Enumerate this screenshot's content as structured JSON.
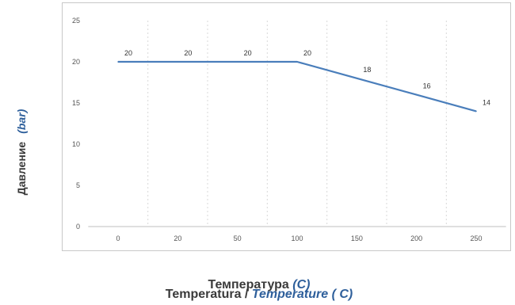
{
  "chart_data": {
    "type": "line",
    "categories": [
      "0",
      "20",
      "50",
      "100",
      "150",
      "200",
      "250"
    ],
    "series": [
      {
        "values": [
          20,
          20,
          20,
          20,
          18,
          16,
          14
        ],
        "color": "#4a7ebb"
      }
    ],
    "data_labels": [
      "20",
      "20",
      "20",
      "20",
      "18",
      "16",
      "14"
    ],
    "ylim": [
      0,
      25
    ],
    "yticks": [
      "0",
      "5",
      "10",
      "15",
      "20",
      "25"
    ],
    "ylabel": {
      "text": "Давление",
      "unit": "(bar)"
    },
    "xlabel": [
      {
        "text": "Температура",
        "unit": "(C)"
      },
      {
        "text": "Temperatura",
        "separator": " / ",
        "unit": "Temperature ( C)"
      }
    ],
    "grid": {
      "vertical": true,
      "horizontal": false
    },
    "legend": "none"
  }
}
